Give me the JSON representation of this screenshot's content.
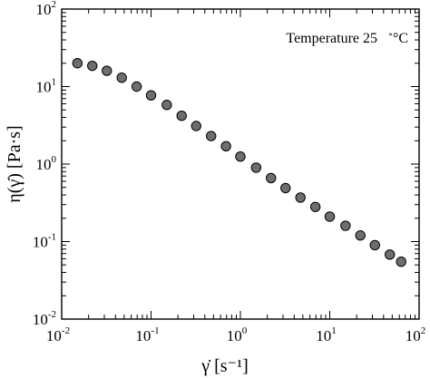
{
  "chart_data": {
    "type": "scatter",
    "title": "",
    "xlabel": "γ̇ [s⁻¹]",
    "ylabel": "η(γ̇) [Pa·s]",
    "xscale": "log",
    "yscale": "log",
    "xlim": [
      0.01,
      100
    ],
    "ylim": [
      0.01,
      100
    ],
    "x_ticks": [
      {
        "value": 0.01,
        "base": "10",
        "exp": "-2"
      },
      {
        "value": 0.1,
        "base": "10",
        "exp": "-1"
      },
      {
        "value": 1,
        "base": "10",
        "exp": "0"
      },
      {
        "value": 10,
        "base": "10",
        "exp": "1"
      },
      {
        "value": 100,
        "base": "10",
        "exp": "2"
      }
    ],
    "y_ticks": [
      {
        "value": 0.01,
        "base": "10",
        "exp": "-2"
      },
      {
        "value": 0.1,
        "base": "10",
        "exp": "-1"
      },
      {
        "value": 1,
        "base": "10",
        "exp": "0"
      },
      {
        "value": 10,
        "base": "10",
        "exp": "1"
      },
      {
        "value": 100,
        "base": "10",
        "exp": "2"
      }
    ],
    "grid": false,
    "annotation": {
      "text": "Temperature 25",
      "unit": "°C",
      "placement": "top-right"
    },
    "marker_color": "#6e6e6e",
    "marker_edge": "#000000",
    "series": [
      {
        "x": [
          0.015,
          0.022,
          0.032,
          0.047,
          0.069,
          0.1,
          0.15,
          0.22,
          0.32,
          0.47,
          0.69,
          1.0,
          1.5,
          2.2,
          3.2,
          4.7,
          6.9,
          10,
          15,
          22,
          32,
          47,
          63
        ],
        "y": [
          20,
          18.5,
          16,
          13,
          10,
          7.7,
          5.8,
          4.2,
          3.1,
          2.3,
          1.7,
          1.25,
          0.9,
          0.66,
          0.49,
          0.37,
          0.28,
          0.21,
          0.16,
          0.12,
          0.09,
          0.068,
          0.055
        ]
      }
    ]
  }
}
